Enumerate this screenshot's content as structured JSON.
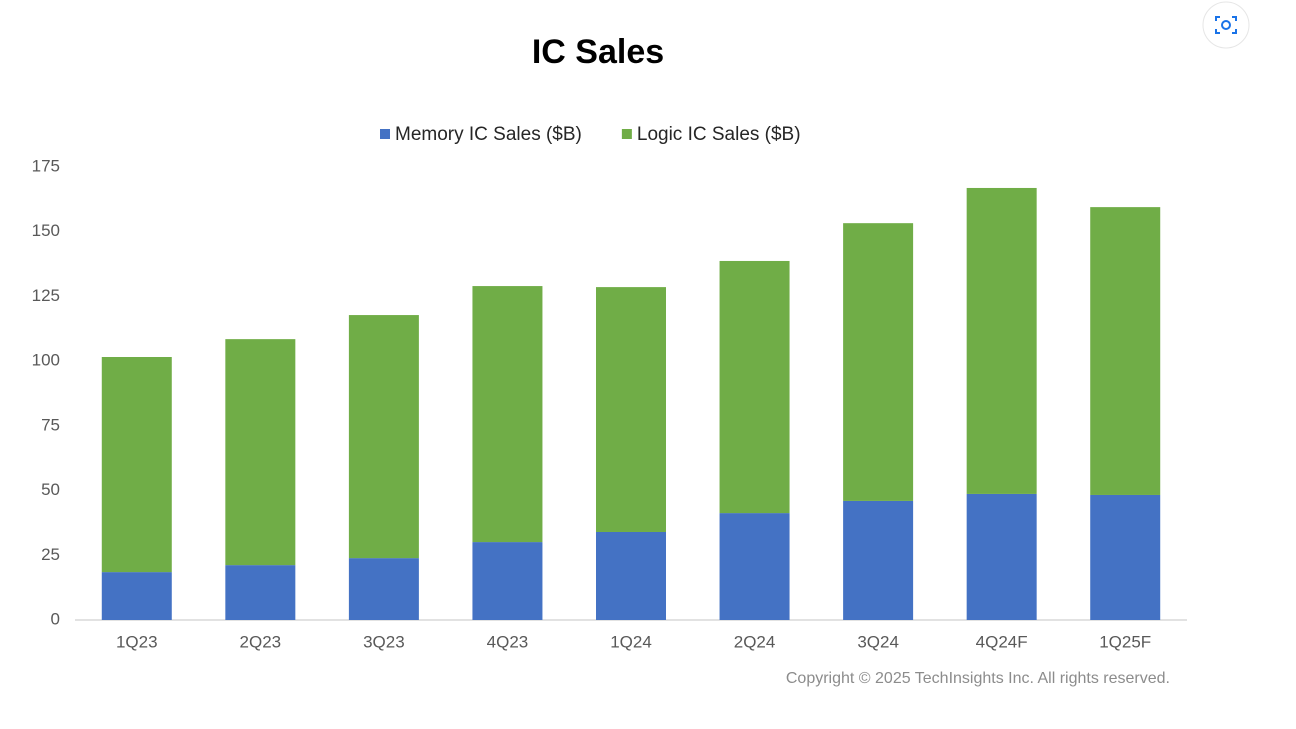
{
  "chart_data": {
    "type": "stacked_bar",
    "title": "IC Sales",
    "categories": [
      "1Q23",
      "2Q23",
      "3Q23",
      "4Q23",
      "1Q24",
      "2Q24",
      "3Q24",
      "4Q24F",
      "1Q25F"
    ],
    "series": [
      {
        "name": "Memory IC Sales ($B)",
        "color": "#4472c4",
        "values": [
          18.5,
          21.2,
          23.9,
          30.1,
          34.0,
          41.3,
          46.0,
          48.7,
          48.3
        ]
      },
      {
        "name": "Logic IC Sales ($B)",
        "color": "#70ad47",
        "values": [
          83.1,
          87.3,
          93.9,
          98.9,
          94.6,
          97.4,
          107.3,
          118.2,
          111.2
        ]
      }
    ],
    "ylim": [
      0,
      175
    ],
    "yticks": [
      0,
      25,
      50,
      75,
      100,
      125,
      150,
      175
    ],
    "grid": false,
    "legend": "top",
    "annotation": "Copyright © 2025 TechInsights Inc.  All rights reserved."
  }
}
